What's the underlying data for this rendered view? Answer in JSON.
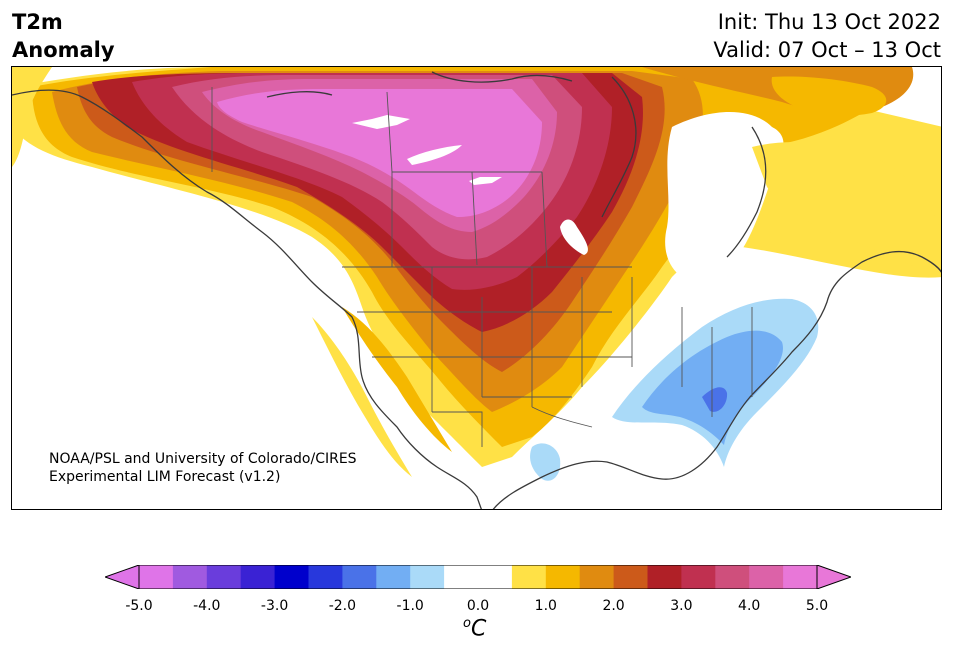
{
  "title": {
    "line1": "T2m",
    "line2": "Anomaly"
  },
  "subtitle": {
    "init": "Init: Thu 13 Oct 2022",
    "valid": "Valid: 07 Oct – 13 Oct"
  },
  "credit": {
    "line1": "NOAA/PSL and University of Colorado/CIRES",
    "line2": "Experimental LIM Forecast (v1.2)"
  },
  "colorbar": {
    "ticks": [
      "-5.0",
      "-4.0",
      "-3.0",
      "-2.0",
      "-1.0",
      "0.0",
      "1.0",
      "2.0",
      "3.0",
      "4.0",
      "5.0"
    ],
    "unit_super": "o",
    "unit_main": "C",
    "colors": [
      "#df74e8",
      "#a05ae0",
      "#6a3ddc",
      "#3a22d4",
      "#0000cc",
      "#2838dc",
      "#4a72e8",
      "#72aef3",
      "#aadaf8",
      "#ffffff",
      "#ffffff",
      "#ffe146",
      "#f5b800",
      "#e08b10",
      "#cc5a1a",
      "#b02027",
      "#c03050",
      "#cf4f7c",
      "#dc62a8",
      "#e877d8"
    ],
    "min_color": "#df74e8",
    "max_color": "#e877d8"
  }
}
